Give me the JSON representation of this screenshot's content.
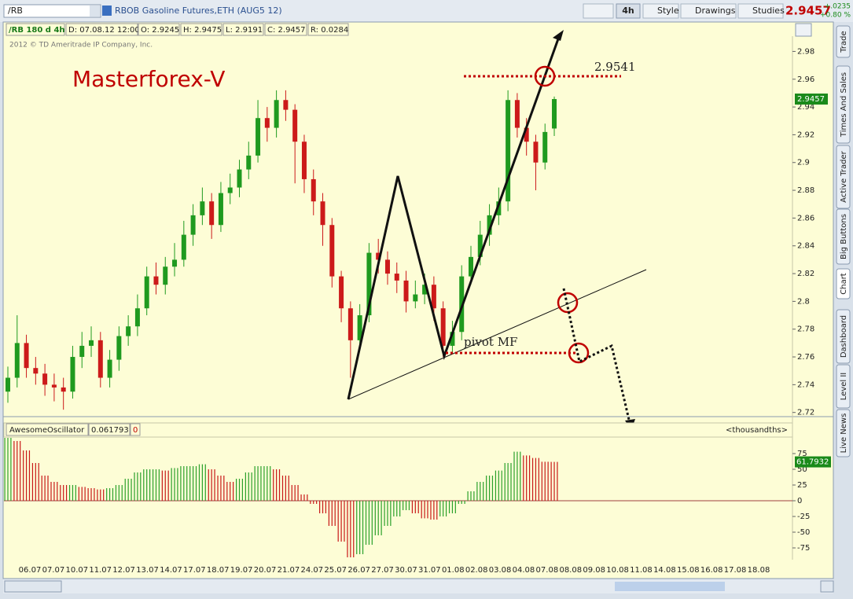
{
  "toolbar": {
    "symbol": "/RB",
    "description": "RBOB Gasoline Futures,ETH (AUG5 12)",
    "aggregation": "4h",
    "buttons": [
      "Style",
      "Drawings",
      "Studies"
    ],
    "last_price": "2.9457",
    "change": "+.0235",
    "change_pct": "+0.80 %"
  },
  "info_bar": [
    "/RB 180 d 4h",
    "D: 07.08.12 12:00",
    "O: 2.9245",
    "H: 2.9475",
    "L: 2.9191",
    "C: 2.9457",
    "R: 0.0284"
  ],
  "copyright": "2012 © TD Ameritrade IP Company, Inc.",
  "side_tabs": [
    "Trade",
    "Times And Sales",
    "Active Trader",
    "Big Buttons",
    "Chart",
    "Dashboard",
    "Level II",
    "Live News"
  ],
  "chart_data": [
    {
      "type": "candlestick",
      "annotations": {
        "watermark": "Masterforex-V",
        "target": "2.9541",
        "pivot": "pivot MF"
      },
      "open": [
        2.735,
        2.745,
        2.77,
        2.752,
        2.748,
        2.74,
        2.738,
        2.735,
        2.76,
        2.768,
        2.772,
        2.745,
        2.758,
        2.775,
        2.782,
        2.795,
        2.818,
        2.812,
        2.825,
        2.83,
        2.848,
        2.862,
        2.872,
        2.855,
        2.878,
        2.882,
        2.895,
        2.905,
        2.932,
        2.925,
        2.945,
        2.938,
        2.915,
        2.888,
        2.872,
        2.855,
        2.818,
        2.795,
        2.772,
        2.79,
        2.835,
        2.83,
        2.82,
        2.815,
        2.8,
        2.805,
        2.812,
        2.795,
        2.768,
        2.778,
        2.818,
        2.832,
        2.848,
        2.862,
        2.872,
        2.945,
        2.925,
        2.915,
        2.9,
        2.9245
      ],
      "high": [
        2.753,
        2.79,
        2.776,
        2.76,
        2.755,
        2.748,
        2.745,
        2.768,
        2.778,
        2.782,
        2.778,
        2.765,
        2.782,
        2.79,
        2.805,
        2.825,
        2.828,
        2.832,
        2.842,
        2.858,
        2.87,
        2.882,
        2.878,
        2.886,
        2.892,
        2.902,
        2.915,
        2.945,
        2.94,
        2.952,
        2.952,
        2.942,
        2.92,
        2.895,
        2.878,
        2.86,
        2.822,
        2.8,
        2.798,
        2.842,
        2.845,
        2.836,
        2.828,
        2.822,
        2.815,
        2.82,
        2.818,
        2.8,
        2.786,
        2.826,
        2.84,
        2.858,
        2.87,
        2.882,
        2.952,
        2.95,
        2.932,
        2.92,
        2.928,
        2.9475
      ],
      "low": [
        2.727,
        2.738,
        2.745,
        2.74,
        2.732,
        2.728,
        2.722,
        2.73,
        2.752,
        2.76,
        2.738,
        2.738,
        2.75,
        2.768,
        2.775,
        2.79,
        2.805,
        2.805,
        2.818,
        2.825,
        2.84,
        2.855,
        2.845,
        2.85,
        2.87,
        2.875,
        2.888,
        2.9,
        2.915,
        2.918,
        2.93,
        2.885,
        2.878,
        2.862,
        2.84,
        2.81,
        2.785,
        2.745,
        2.765,
        2.785,
        2.82,
        2.812,
        2.806,
        2.792,
        2.795,
        2.798,
        2.786,
        2.76,
        2.762,
        2.772,
        2.812,
        2.826,
        2.84,
        2.855,
        2.865,
        2.918,
        2.905,
        2.88,
        2.895,
        2.9191
      ],
      "close": [
        2.745,
        2.77,
        2.752,
        2.748,
        2.74,
        2.738,
        2.735,
        2.76,
        2.768,
        2.772,
        2.745,
        2.758,
        2.775,
        2.782,
        2.795,
        2.818,
        2.812,
        2.825,
        2.83,
        2.848,
        2.862,
        2.872,
        2.855,
        2.878,
        2.882,
        2.895,
        2.905,
        2.932,
        2.925,
        2.945,
        2.938,
        2.915,
        2.888,
        2.872,
        2.855,
        2.818,
        2.795,
        2.772,
        2.79,
        2.835,
        2.83,
        2.82,
        2.815,
        2.8,
        2.805,
        2.812,
        2.795,
        2.768,
        2.778,
        2.818,
        2.832,
        2.848,
        2.862,
        2.872,
        2.945,
        2.925,
        2.915,
        2.9,
        2.922,
        2.9457
      ],
      "up_color": "#1f9a1f",
      "down_color": "#cc1a1a",
      "ylim": [
        2.717,
        2.991
      ],
      "yticks": [
        2.98,
        2.96,
        2.94,
        2.92,
        2.9,
        2.88,
        2.86,
        2.84,
        2.82,
        2.8,
        2.78,
        2.76,
        2.74,
        2.72
      ],
      "x_labels": [
        "06.07",
        "07.07",
        "10.07",
        "11.07",
        "12.07",
        "13.07",
        "14.07",
        "17.07",
        "18.07",
        "19.07",
        "20.07",
        "21.07",
        "24.07",
        "25.07",
        "26.07",
        "27.07",
        "30.07",
        "31.07",
        "01.08",
        "02.08",
        "03.08",
        "04.08",
        "07.08",
        "08.08",
        "09.08",
        "10.08",
        "11.08",
        "14.08",
        "15.08",
        "16.08",
        "17.08",
        "18.08"
      ]
    },
    {
      "type": "bar",
      "title": "AwesomeOscillator",
      "value_text": "0.061793",
      "param": "0",
      "units": "<thousandths>",
      "values": [
        100,
        95,
        80,
        60,
        40,
        30,
        25,
        25,
        22,
        20,
        18,
        20,
        25,
        35,
        45,
        50,
        50,
        48,
        52,
        55,
        55,
        58,
        50,
        40,
        30,
        35,
        45,
        55,
        55,
        50,
        40,
        25,
        10,
        -5,
        -20,
        -40,
        -65,
        -90,
        -85,
        -70,
        -55,
        -40,
        -25,
        -15,
        -20,
        -28,
        -30,
        -25,
        -20,
        -5,
        15,
        30,
        40,
        48,
        60,
        78,
        72,
        68,
        62,
        61.7932
      ],
      "up_color": "#2aa02a",
      "down_color": "#c81818",
      "ylim": [
        -93.75,
        101.25
      ],
      "yticks": [
        75,
        50,
        25,
        0,
        -25,
        -50,
        -75
      ]
    }
  ]
}
